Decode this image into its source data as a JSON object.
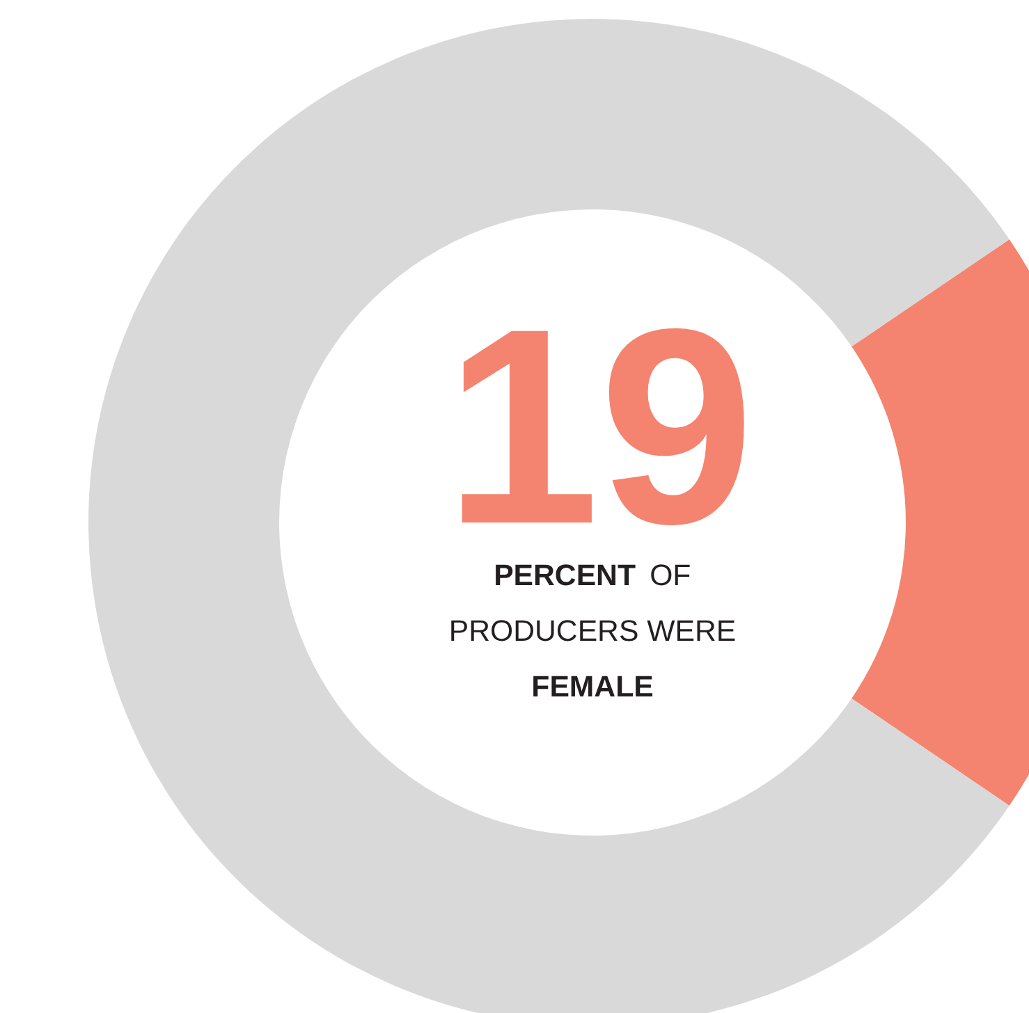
{
  "chart_data": {
    "type": "donut",
    "categories": [
      null,
      null
    ],
    "values": [
      19,
      81
    ],
    "colors": [
      "#f4846f",
      "#d9d9d9"
    ],
    "annotations": [
      "19",
      "PERCENT OF",
      "PRODUCERS WERE",
      "FEMALE"
    ]
  }
}
